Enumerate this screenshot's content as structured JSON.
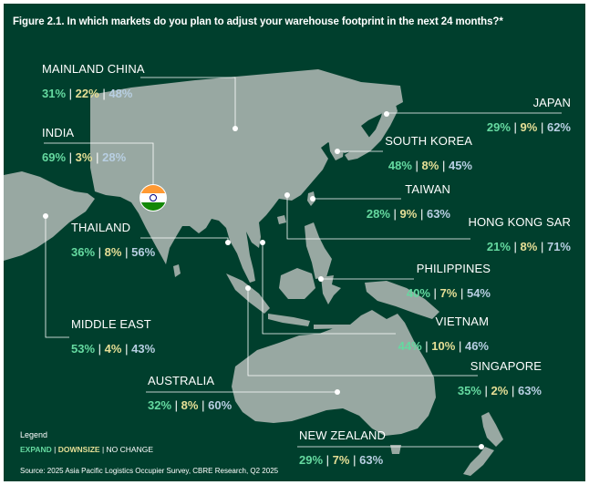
{
  "figure": {
    "title": "Figure 2.1. In which markets do you plan to adjust your warehouse footprint in the next 24 months?*"
  },
  "separator": "|",
  "colors": {
    "background": "#003f2d",
    "land": "#98a8a2",
    "expand": "#65d9a0",
    "downsize": "#e6df96",
    "no_change": "#b8cfe2",
    "leader_line": "#ffffff"
  },
  "regions": {
    "mainland_china": {
      "name": "MAINLAND CHINA",
      "expand": "31%",
      "downsize": "22%",
      "no_change": "48%"
    },
    "india": {
      "name": "INDIA",
      "expand": "69%",
      "downsize": "3%",
      "no_change": "28%"
    },
    "thailand": {
      "name": "THAILAND",
      "expand": "36%",
      "downsize": "8%",
      "no_change": "56%"
    },
    "middle_east": {
      "name": "MIDDLE EAST",
      "expand": "53%",
      "downsize": "4%",
      "no_change": "43%"
    },
    "australia": {
      "name": "AUSTRALIA",
      "expand": "32%",
      "downsize": "8%",
      "no_change": "60%"
    },
    "japan": {
      "name": "JAPAN",
      "expand": "29%",
      "downsize": "9%",
      "no_change": "62%"
    },
    "south_korea": {
      "name": "SOUTH KOREA",
      "expand": "48%",
      "downsize": "8%",
      "no_change": "45%"
    },
    "taiwan": {
      "name": "TAIWAN",
      "expand": "28%",
      "downsize": "9%",
      "no_change": "63%"
    },
    "hong_kong": {
      "name": "HONG KONG SAR",
      "expand": "21%",
      "downsize": "8%",
      "no_change": "71%"
    },
    "philippines": {
      "name": "PHILIPPINES",
      "expand": "40%",
      "downsize": "7%",
      "no_change": "54%"
    },
    "vietnam": {
      "name": "VIETNAM",
      "expand": "44%",
      "downsize": "10%",
      "no_change": "46%"
    },
    "singapore": {
      "name": "SINGAPORE",
      "expand": "35%",
      "downsize": "2%",
      "no_change": "63%"
    },
    "new_zealand": {
      "name": "NEW ZEALAND",
      "expand": "29%",
      "downsize": "7%",
      "no_change": "63%"
    }
  },
  "legend": {
    "title": "Legend",
    "expand_label": "EXPAND",
    "downsize_label": "DOWNSIZE",
    "no_change_label": "NO CHANGE"
  },
  "source": "Source: 2025 Asia Pacific Logistics Occupier Survey, CBRE Research, Q2 2025"
}
